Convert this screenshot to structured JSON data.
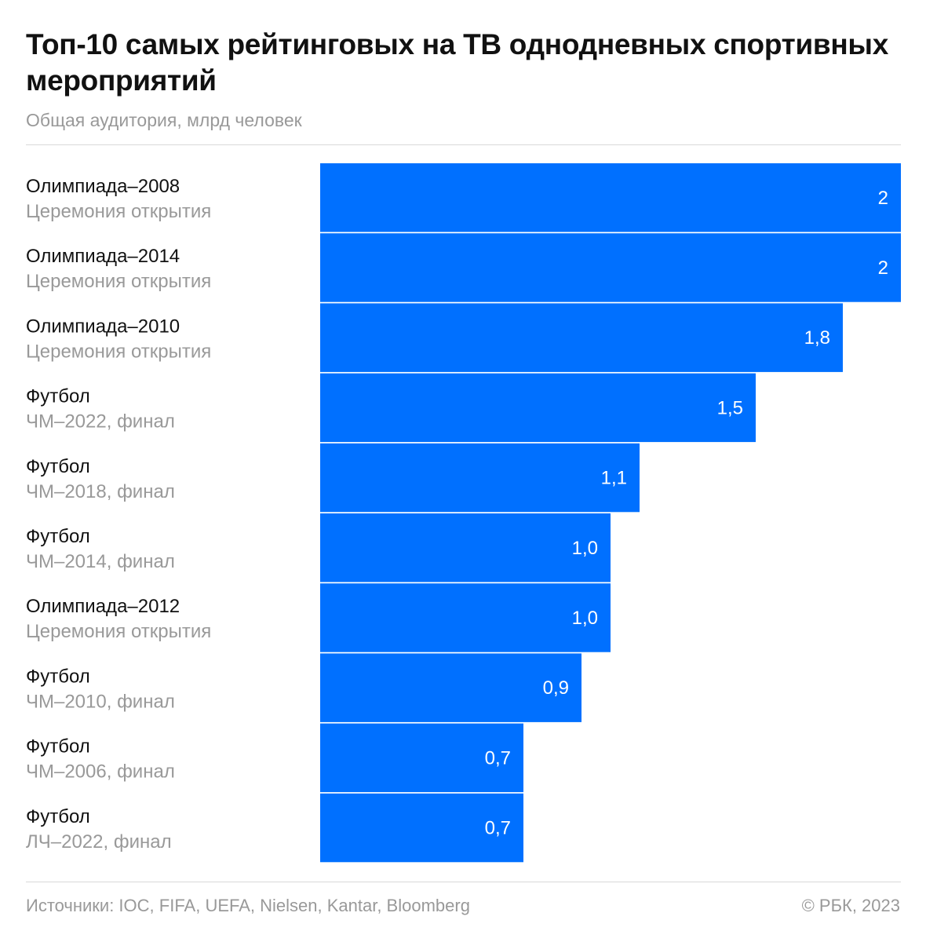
{
  "header": {
    "title": "Топ-10 самых рейтинговых на ТВ однодневных спортивных мероприятий",
    "subtitle": "Общая аудитория, млрд человек"
  },
  "footer": {
    "sources": "Источники: IOC, FIFA, UEFA, Nielsen, Kantar, Bloomberg",
    "copyright": "© РБК, 2023"
  },
  "colors": {
    "bar": "#0070ff",
    "text": "#111111",
    "muted": "#999999"
  },
  "chart_data": {
    "type": "bar",
    "orientation": "horizontal",
    "title": "Топ-10 самых рейтинговых на ТВ однодневных спортивных мероприятий",
    "subtitle": "Общая аудитория, млрд человек",
    "xlim": [
      0,
      2
    ],
    "grid": false,
    "categories": [
      {
        "name": "Олимпиада–2008",
        "detail": "Церемония открытия",
        "value": 2,
        "label": "2"
      },
      {
        "name": "Олимпиада–2014",
        "detail": "Церемония открытия",
        "value": 2,
        "label": "2"
      },
      {
        "name": "Олимпиада–2010",
        "detail": "Церемония открытия",
        "value": 1.8,
        "label": "1,8"
      },
      {
        "name": "Футбол",
        "detail": "ЧМ–2022, финал",
        "value": 1.5,
        "label": "1,5"
      },
      {
        "name": "Футбол",
        "detail": "ЧМ–2018, финал",
        "value": 1.1,
        "label": "1,1"
      },
      {
        "name": "Футбол",
        "detail": "ЧМ–2014, финал",
        "value": 1.0,
        "label": "1,0"
      },
      {
        "name": "Олимпиада–2012",
        "detail": "Церемония открытия",
        "value": 1.0,
        "label": "1,0"
      },
      {
        "name": "Футбол",
        "detail": "ЧМ–2010, финал",
        "value": 0.9,
        "label": "0,9"
      },
      {
        "name": "Футбол",
        "detail": "ЧМ–2006, финал",
        "value": 0.7,
        "label": "0,7"
      },
      {
        "name": "Футбол",
        "detail": "ЛЧ–2022, финал",
        "value": 0.7,
        "label": "0,7"
      }
    ]
  }
}
